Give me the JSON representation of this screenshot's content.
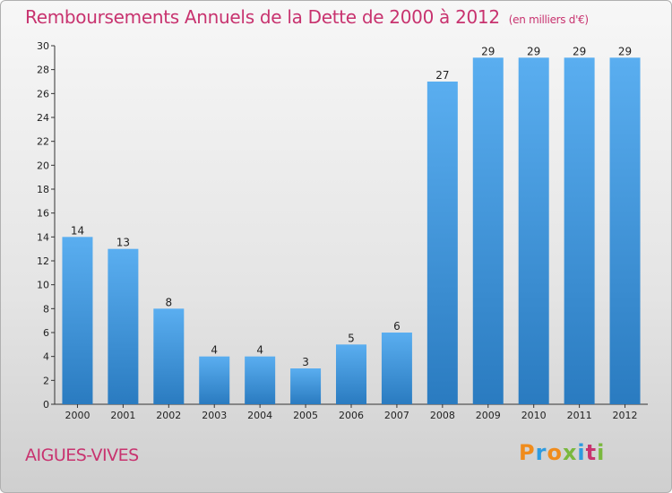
{
  "header": {
    "title": "Remboursements Annuels de la Dette de 2000 à 2012",
    "unit": "(en milliers d'€)"
  },
  "footer": {
    "city": "AIGUES-VIVES",
    "logo": [
      "P",
      "r",
      "o",
      "x",
      "i",
      "t",
      "i"
    ],
    "logo_colors": [
      "#f08c1c",
      "#2e9be0",
      "#f08c1c",
      "#7ab83e",
      "#2e9be0",
      "#c8336f",
      "#7ab83e"
    ]
  },
  "chart_data": {
    "type": "bar",
    "title": "Remboursements Annuels de la Dette de 2000 à 2012",
    "xlabel": "",
    "ylabel": "",
    "categories": [
      "2000",
      "2001",
      "2002",
      "2003",
      "2004",
      "2005",
      "2006",
      "2007",
      "2008",
      "2009",
      "2010",
      "2011",
      "2012"
    ],
    "values": [
      14,
      13,
      8,
      4,
      4,
      3,
      5,
      6,
      27,
      29,
      29,
      29,
      29
    ],
    "ylim": [
      0,
      30
    ],
    "yticks": [
      0,
      2,
      4,
      6,
      8,
      10,
      12,
      14,
      16,
      18,
      20,
      22,
      24,
      26,
      28,
      30
    ],
    "bar_color_top": "#5aaef0",
    "bar_color_bottom": "#2a7bc0",
    "grid": false
  }
}
